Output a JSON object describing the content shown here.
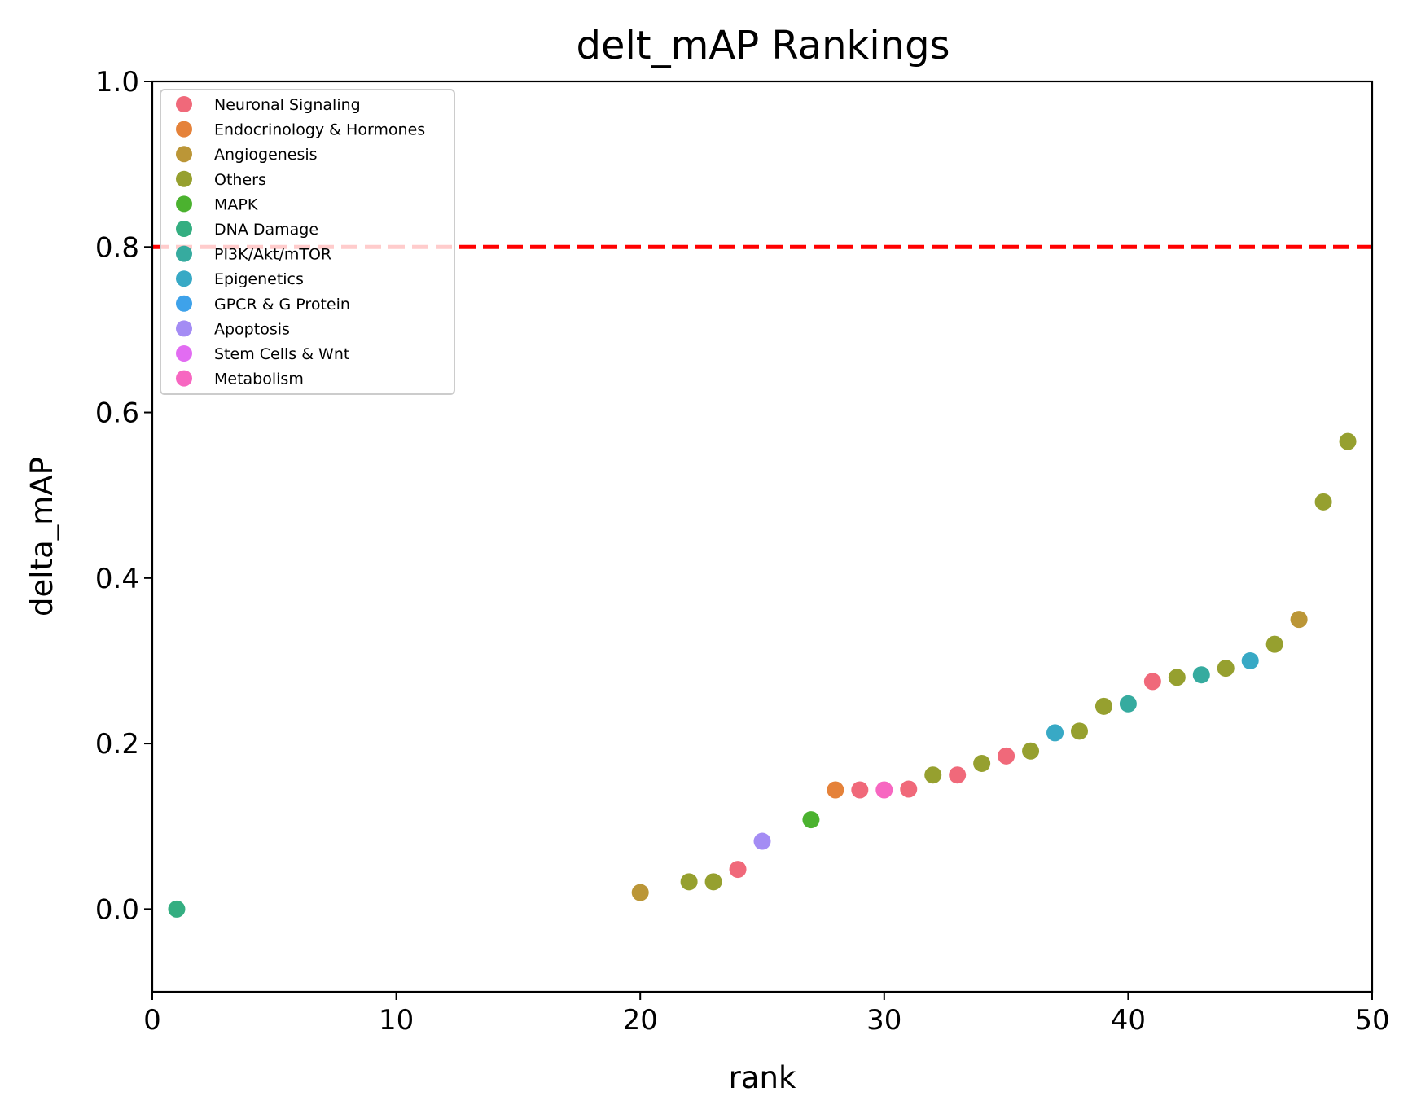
{
  "chart_data": {
    "type": "scatter",
    "title": "delt_mAP Rankings",
    "xlabel": "rank",
    "ylabel": "delta_mAP",
    "xlim": [
      0,
      50
    ],
    "ylim": [
      -0.1,
      1.0
    ],
    "xticks": [
      "0",
      "10",
      "20",
      "30",
      "40",
      "50"
    ],
    "yticks": [
      "0.0",
      "0.2",
      "0.4",
      "0.6",
      "0.8",
      "1.0"
    ],
    "grid": false,
    "legend_position": "top-left",
    "reference_line": {
      "y": 0.8,
      "color": "#ff0000",
      "style": "dashed"
    },
    "series": [
      {
        "name": "Neuronal Signaling",
        "color": "#f0697a",
        "points": [
          [
            24,
            0.048
          ],
          [
            29,
            0.144
          ],
          [
            31,
            0.145
          ],
          [
            33,
            0.162
          ],
          [
            35,
            0.185
          ],
          [
            41,
            0.275
          ]
        ]
      },
      {
        "name": "Endocrinology & Hormones",
        "color": "#e5823a",
        "points": [
          [
            28,
            0.144
          ]
        ]
      },
      {
        "name": "Angiogenesis",
        "color": "#bb9637",
        "points": [
          [
            20,
            0.02
          ],
          [
            47,
            0.35
          ]
        ]
      },
      {
        "name": "Others",
        "color": "#96a02f",
        "points": [
          [
            22,
            0.033
          ],
          [
            23,
            0.033
          ],
          [
            32,
            0.162
          ],
          [
            34,
            0.176
          ],
          [
            36,
            0.191
          ],
          [
            38,
            0.215
          ],
          [
            39,
            0.245
          ],
          [
            42,
            0.28
          ],
          [
            44,
            0.291
          ],
          [
            46,
            0.32
          ],
          [
            48,
            0.492
          ],
          [
            49,
            0.565
          ]
        ]
      },
      {
        "name": "MAPK",
        "color": "#4bb22f",
        "points": [
          [
            27,
            0.108
          ]
        ]
      },
      {
        "name": "DNA Damage",
        "color": "#34ae81",
        "points": [
          [
            1,
            0.0
          ]
        ]
      },
      {
        "name": "PI3K/Akt/mTOR",
        "color": "#36ab9f",
        "points": [
          [
            40,
            0.248
          ],
          [
            43,
            0.283
          ]
        ]
      },
      {
        "name": "Epigenetics",
        "color": "#38a9c5",
        "points": [
          [
            37,
            0.213
          ],
          [
            45,
            0.3
          ]
        ]
      },
      {
        "name": "GPCR & G Protein",
        "color": "#3ea2ea",
        "points": []
      },
      {
        "name": "Apoptosis",
        "color": "#a48cf4",
        "points": [
          [
            25,
            0.082
          ]
        ]
      },
      {
        "name": "Stem Cells &  Wnt",
        "color": "#e26cf2",
        "points": []
      },
      {
        "name": "Metabolism",
        "color": "#f767c1",
        "points": [
          [
            30,
            0.144
          ]
        ]
      }
    ]
  }
}
